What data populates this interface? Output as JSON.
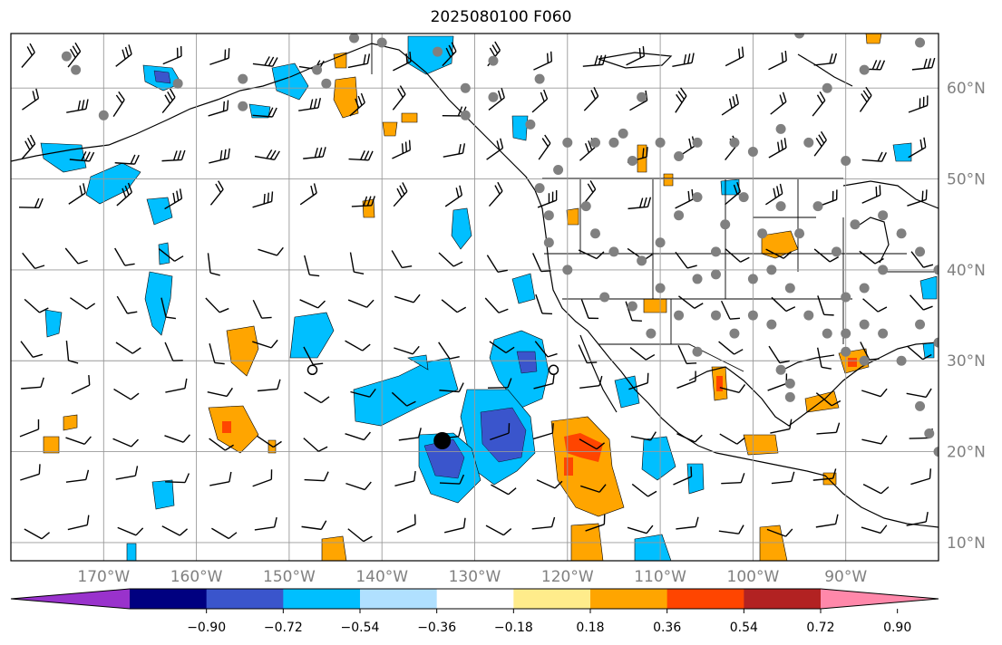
{
  "title": "2025080100 F060",
  "x_axis": {
    "labels": [
      "170°W",
      "160°W",
      "150°W",
      "140°W",
      "130°W",
      "120°W",
      "110°W",
      "100°W",
      "90°W"
    ],
    "lon": [
      -170,
      -160,
      -150,
      -140,
      -130,
      -120,
      -110,
      -100,
      -90
    ]
  },
  "y_axis": {
    "labels": [
      "10°N",
      "20°N",
      "30°N",
      "40°N",
      "50°N",
      "60°N"
    ],
    "lat": [
      10,
      20,
      30,
      40,
      50,
      60
    ]
  },
  "extent": {
    "lon": [
      -180,
      -80
    ],
    "lat": [
      8,
      66
    ]
  },
  "colorbar": {
    "colors": [
      "#9932cc",
      "#000080",
      "#3a55cc",
      "#00bfff",
      "#b0e0ff",
      "#ffffff",
      "#ffec8b",
      "#ffa500",
      "#ff4500",
      "#b22222",
      "#ff88aa"
    ],
    "ticks": [
      "−0.90",
      "−0.72",
      "−0.54",
      "−0.36",
      "−0.18",
      "0.18",
      "0.36",
      "0.54",
      "0.72",
      "0.90"
    ]
  },
  "markers": {
    "big_dot": [
      -133.5,
      21.2
    ],
    "open_circles": [
      [
        -147.5,
        29.0
      ],
      [
        -121.5,
        29.0
      ]
    ]
  },
  "legend_colors": {
    "neg_light": "#00bfff",
    "neg_dark": "#3a55cc",
    "pos_light": "#ffa500",
    "pos_dark": "#ff4500",
    "station": "#808080"
  }
}
